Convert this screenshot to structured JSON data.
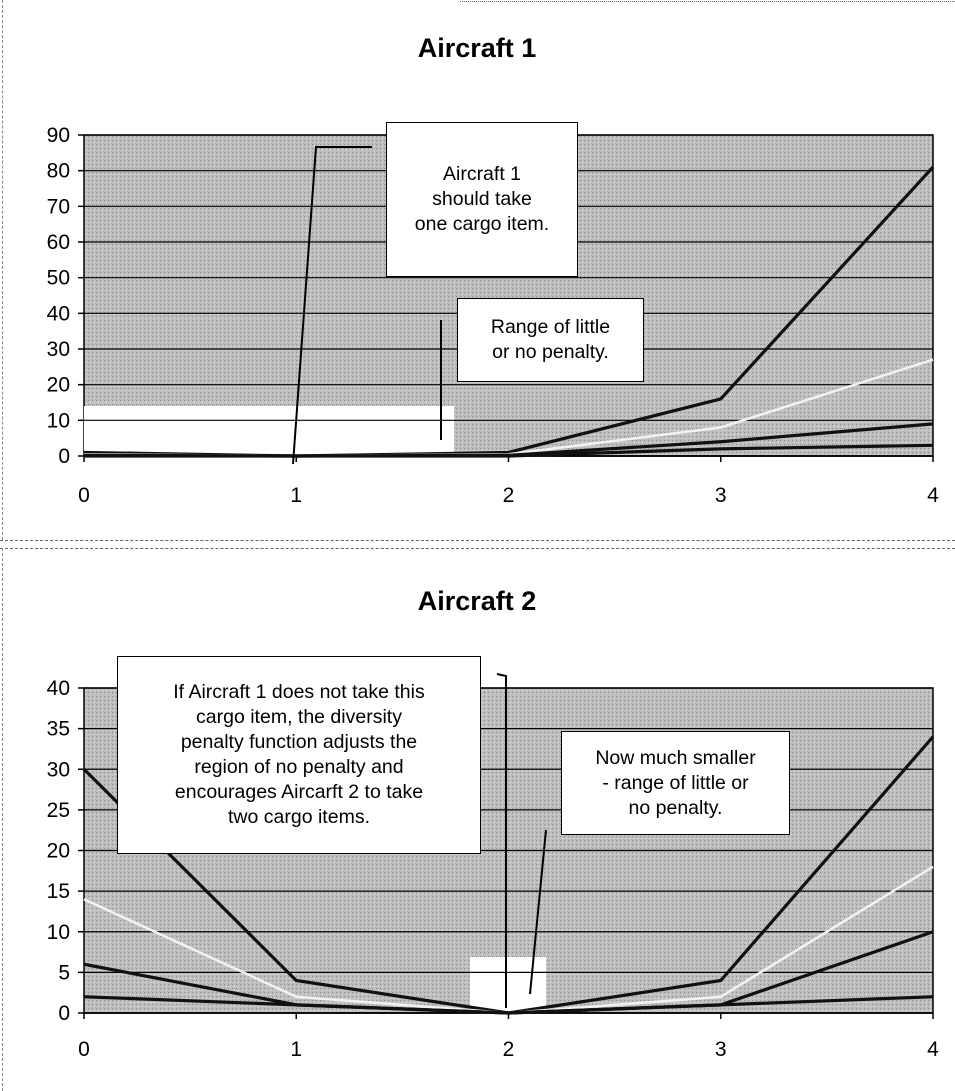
{
  "chart_data": [
    {
      "type": "line",
      "title": "Aircraft 1",
      "xlabel": "",
      "ylabel": "",
      "categories": [
        0,
        1,
        2,
        3,
        4
      ],
      "x_ticks": [
        "0",
        "1",
        "2",
        "3",
        "4"
      ],
      "y_ticks": [
        "0",
        "10",
        "20",
        "30",
        "40",
        "50",
        "60",
        "70",
        "80",
        "90"
      ],
      "ylim": [
        0,
        90
      ],
      "grid": true,
      "plot_background": "#bdbdbd",
      "series": [
        {
          "values": [
            1,
            0,
            1,
            16,
            81
          ],
          "color": "#111111"
        },
        {
          "values": [
            0.5,
            0,
            0.5,
            8,
            27
          ],
          "color": "#f2f2f2"
        },
        {
          "values": [
            0.2,
            0,
            0.2,
            4,
            9
          ],
          "color": "#111111"
        },
        {
          "values": [
            0,
            0,
            0,
            2,
            3
          ],
          "color": "#111111"
        }
      ],
      "annotations": [
        {
          "text": "Aircraft 1\nshould take\none cargo item."
        },
        {
          "text": "Range of little\nor no penalty."
        }
      ]
    },
    {
      "type": "line",
      "title": "Aircraft 2",
      "xlabel": "",
      "ylabel": "",
      "categories": [
        0,
        1,
        2,
        3,
        4
      ],
      "x_ticks": [
        "0",
        "1",
        "2",
        "3",
        "4"
      ],
      "y_ticks": [
        "0",
        "5",
        "10",
        "15",
        "20",
        "25",
        "30",
        "35",
        "40"
      ],
      "ylim": [
        0,
        40
      ],
      "grid": true,
      "plot_background": "#bdbdbd",
      "series": [
        {
          "values": [
            30,
            4,
            0,
            4,
            34
          ],
          "color": "#111111"
        },
        {
          "values": [
            14,
            2,
            0,
            2,
            18
          ],
          "color": "#f2f2f2"
        },
        {
          "values": [
            6,
            1,
            0,
            1,
            10
          ],
          "color": "#111111"
        },
        {
          "values": [
            2,
            1,
            0,
            1,
            2
          ],
          "color": "#111111"
        }
      ],
      "annotations": [
        {
          "text": "If Aircraft 1 does not take this\ncargo item, the diversity\npenalty function adjusts the\nregion of no penalty and\nencourages Aircarft 2 to take\ntwo cargo items."
        },
        {
          "text": "Now much smaller\n- range of little or\nno penalty."
        }
      ]
    }
  ]
}
